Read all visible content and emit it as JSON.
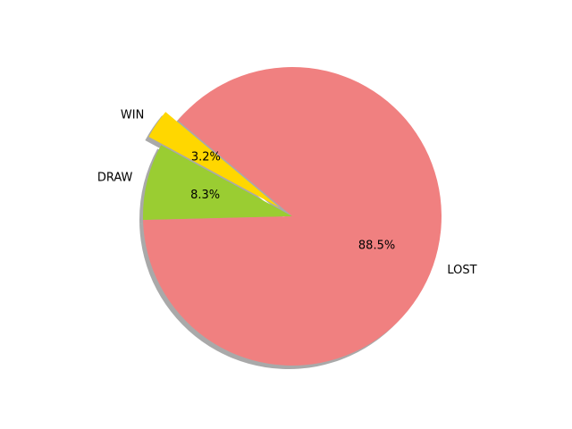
{
  "chart_data": {
    "type": "pie",
    "title": "",
    "labels": [
      "WIN",
      "DRAW",
      "LOST"
    ],
    "values": [
      3.2,
      8.3,
      88.5
    ],
    "percent_labels": [
      "3.2%",
      "8.3%",
      "88.5%"
    ],
    "colors": [
      "#ffd700",
      "#9acd32",
      "#f08080"
    ],
    "explode": [
      0.1,
      0,
      0
    ],
    "start_angle_deg": 140,
    "shadow": true,
    "legend": false
  }
}
